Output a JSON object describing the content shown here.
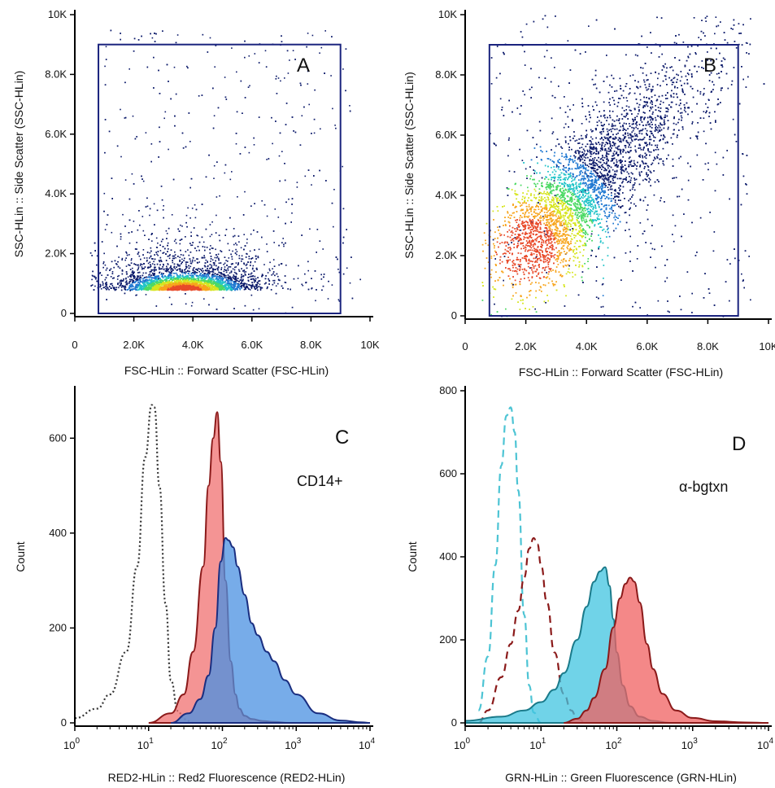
{
  "chart_data": [
    {
      "id": "A",
      "type": "scatter",
      "panel_label": "A",
      "xlabel": "FSC-HLin :: Forward Scatter (FSC-HLin)",
      "ylabel": "SSC-HLin :: Side Scatter (SSC-HLin)",
      "xlim": [
        0,
        10000
      ],
      "ylim": [
        0,
        10000
      ],
      "x_ticks": [
        {
          "value": 0,
          "label": "0"
        },
        {
          "value": 2000,
          "label": "2.0K"
        },
        {
          "value": 4000,
          "label": "4.0K"
        },
        {
          "value": 6000,
          "label": "6.0K"
        },
        {
          "value": 8000,
          "label": "8.0K"
        },
        {
          "value": 10000,
          "label": "10K"
        }
      ],
      "y_ticks": [
        {
          "value": 0,
          "label": "0"
        },
        {
          "value": 2000,
          "label": "2.0K"
        },
        {
          "value": 4000,
          "label": "4.0K"
        },
        {
          "value": 6000,
          "label": "6.0K"
        },
        {
          "value": 8000,
          "label": "8.0K"
        },
        {
          "value": 10000,
          "label": "10K"
        }
      ],
      "gate": {
        "x": [
          800,
          9000
        ],
        "y": [
          0,
          9000
        ]
      },
      "density_center": {
        "x": 3700,
        "y": 800
      },
      "density_spread": {
        "x": 1000,
        "y": 300
      }
    },
    {
      "id": "B",
      "type": "scatter",
      "panel_label": "B",
      "xlabel": "FSC-HLin :: Forward Scatter (FSC-HLin)",
      "ylabel": "SSC-HLin :: Side Scatter (SSC-HLin)",
      "xlim": [
        0,
        10000
      ],
      "ylim": [
        0,
        10000
      ],
      "x_ticks": [
        {
          "value": 0,
          "label": "0"
        },
        {
          "value": 2000,
          "label": "2.0K"
        },
        {
          "value": 4000,
          "label": "4.0K"
        },
        {
          "value": 6000,
          "label": "6.0K"
        },
        {
          "value": 8000,
          "label": "8.0K"
        },
        {
          "value": 10000,
          "label": "10K"
        }
      ],
      "y_ticks": [
        {
          "value": 0,
          "label": "0"
        },
        {
          "value": 2000,
          "label": "2.0K"
        },
        {
          "value": 4000,
          "label": "4.0K"
        },
        {
          "value": 6000,
          "label": "6.0K"
        },
        {
          "value": 8000,
          "label": "8.0K"
        },
        {
          "value": 10000,
          "label": "10K"
        }
      ],
      "gate": {
        "x": [
          800,
          9000
        ],
        "y": [
          0,
          9000
        ]
      },
      "density_center": {
        "x": 2000,
        "y": 2200
      },
      "density_spread": {
        "x": 1400,
        "y": 1500
      }
    },
    {
      "id": "C",
      "type": "area",
      "panel_label": "C",
      "annotation": "CD14+",
      "xlabel": "RED2-HLin :: Red2 Fluorescence (RED2-HLin)",
      "ylabel": "Count",
      "x_scale": "log",
      "xlim": [
        1,
        10000
      ],
      "ylim": [
        0,
        700
      ],
      "x_ticks": [
        {
          "value": 1,
          "base": "10",
          "exp": "0"
        },
        {
          "value": 10,
          "base": "10",
          "exp": "1"
        },
        {
          "value": 100,
          "base": "10",
          "exp": "2"
        },
        {
          "value": 1000,
          "base": "10",
          "exp": "3"
        },
        {
          "value": 10000,
          "base": "10",
          "exp": "4"
        }
      ],
      "y_ticks": [
        {
          "value": 0,
          "label": "0"
        },
        {
          "value": 200,
          "label": "200"
        },
        {
          "value": 400,
          "label": "400"
        },
        {
          "value": 600,
          "label": "600"
        }
      ],
      "series": [
        {
          "style": "dotted",
          "fill": "none",
          "stroke": "#333333",
          "x": [
            1,
            2,
            3,
            5,
            7,
            9,
            11,
            12,
            14,
            17,
            20,
            25,
            30,
            40
          ],
          "y": [
            10,
            30,
            60,
            150,
            330,
            560,
            670,
            665,
            500,
            250,
            90,
            25,
            8,
            0
          ]
        },
        {
          "style": "filled",
          "fill": "#f07070",
          "stroke": "#8b1a1a",
          "x": [
            10,
            20,
            30,
            40,
            55,
            65,
            75,
            85,
            95,
            110,
            130,
            150,
            170,
            200,
            250,
            350,
            500,
            800
          ],
          "y": [
            0,
            20,
            60,
            150,
            330,
            500,
            600,
            655,
            550,
            300,
            130,
            60,
            30,
            15,
            8,
            4,
            2,
            0
          ]
        },
        {
          "style": "filled",
          "fill": "#4a90e2",
          "stroke": "#1a2e80",
          "x": [
            20,
            35,
            50,
            65,
            80,
            95,
            110,
            120,
            140,
            160,
            200,
            250,
            300,
            400,
            500,
            700,
            1000,
            2000,
            4000,
            8000,
            10000
          ],
          "y": [
            0,
            20,
            50,
            100,
            200,
            340,
            390,
            385,
            370,
            330,
            270,
            210,
            185,
            150,
            130,
            90,
            60,
            20,
            5,
            1,
            0
          ]
        }
      ]
    },
    {
      "id": "D",
      "type": "area",
      "panel_label": "D",
      "annotation": "α-bgtxn",
      "xlabel": "GRN-HLin :: Green Fluorescence (GRN-HLin)",
      "ylabel": "Count",
      "x_scale": "log",
      "xlim": [
        1,
        10000
      ],
      "ylim": [
        0,
        800
      ],
      "x_ticks": [
        {
          "value": 1,
          "base": "10",
          "exp": "0"
        },
        {
          "value": 10,
          "base": "10",
          "exp": "1"
        },
        {
          "value": 100,
          "base": "10",
          "exp": "2"
        },
        {
          "value": 1000,
          "base": "10",
          "exp": "3"
        },
        {
          "value": 10000,
          "base": "10",
          "exp": "4"
        }
      ],
      "y_ticks": [
        {
          "value": 0,
          "label": "0"
        },
        {
          "value": 200,
          "label": "200"
        },
        {
          "value": 400,
          "label": "400"
        },
        {
          "value": 600,
          "label": "600"
        },
        {
          "value": 800,
          "label": "800"
        }
      ],
      "series": [
        {
          "style": "dashed",
          "fill": "none",
          "stroke": "#4dc4d4",
          "x": [
            1.5,
            2,
            2.5,
            3,
            3.5,
            4,
            4.5,
            5,
            6,
            7,
            8,
            10
          ],
          "y": [
            30,
            160,
            380,
            620,
            740,
            760,
            700,
            560,
            260,
            90,
            25,
            0
          ]
        },
        {
          "style": "dashed",
          "fill": "none",
          "stroke": "#8b1a1a",
          "x": [
            1.5,
            2,
            3,
            4,
            5,
            6,
            7,
            8,
            9,
            10,
            12,
            15,
            20,
            25,
            30,
            40
          ],
          "y": [
            0,
            30,
            110,
            190,
            270,
            350,
            420,
            445,
            430,
            380,
            290,
            170,
            70,
            30,
            10,
            0
          ]
        },
        {
          "style": "filled",
          "fill": "#40c4e0",
          "stroke": "#1a7a8a",
          "x": [
            1,
            3,
            6,
            10,
            15,
            20,
            30,
            40,
            50,
            60,
            70,
            80,
            90,
            100,
            120,
            150,
            200,
            300,
            500
          ],
          "y": [
            5,
            15,
            30,
            50,
            80,
            120,
            200,
            280,
            340,
            365,
            375,
            330,
            250,
            170,
            90,
            40,
            15,
            5,
            0
          ]
        },
        {
          "style": "filled",
          "fill": "#f06060",
          "stroke": "#8b1a1a",
          "x": [
            20,
            30,
            40,
            50,
            70,
            90,
            110,
            130,
            150,
            170,
            200,
            250,
            300,
            400,
            600,
            1000,
            2000,
            5000,
            10000
          ],
          "y": [
            0,
            10,
            30,
            60,
            130,
            230,
            300,
            335,
            350,
            340,
            290,
            190,
            130,
            70,
            30,
            12,
            4,
            1,
            0
          ]
        }
      ]
    }
  ]
}
